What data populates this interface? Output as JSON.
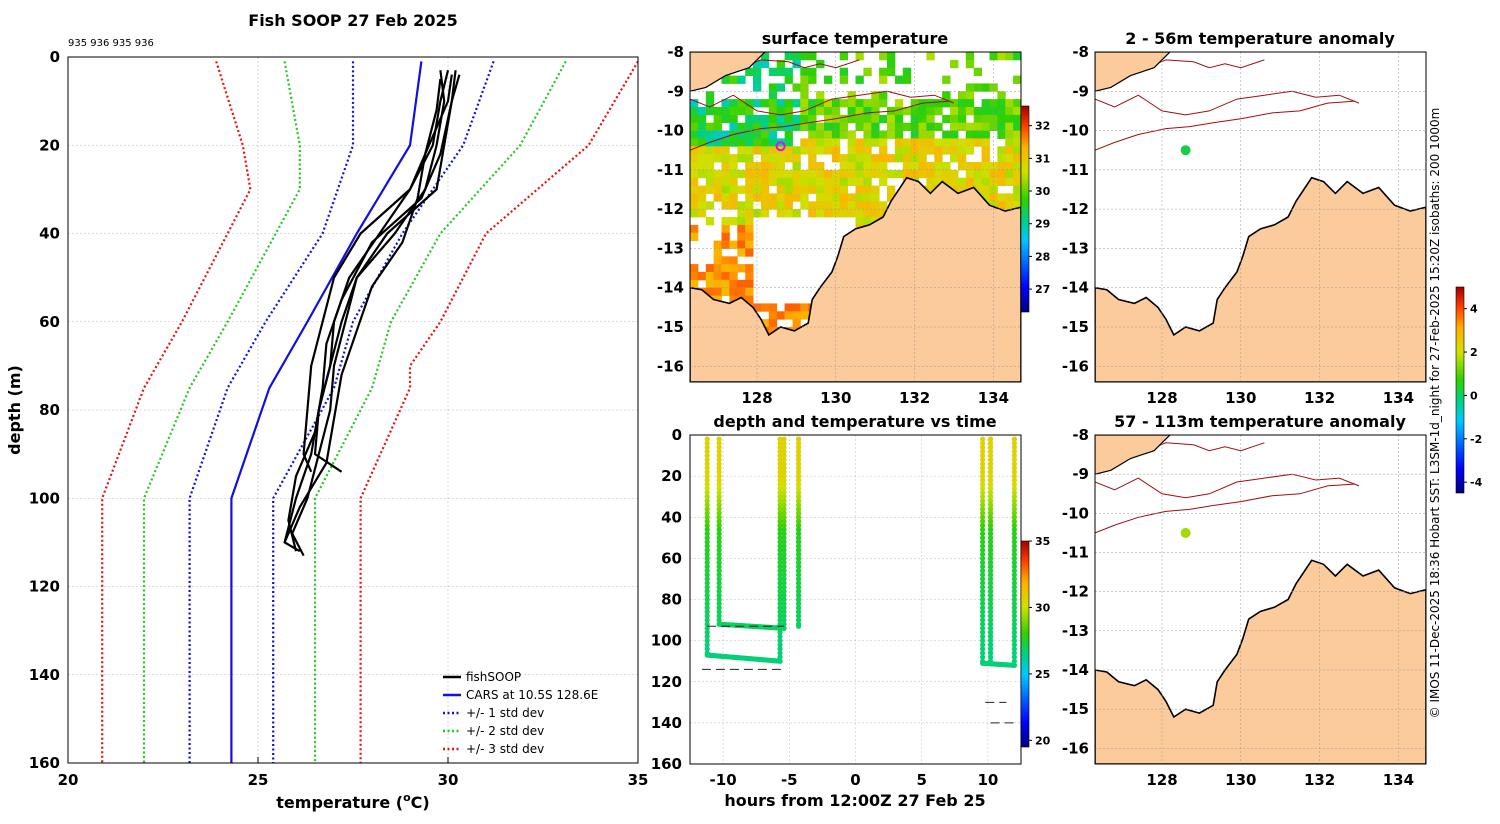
{
  "chart_data": [
    {
      "type": "line",
      "title": "Fish SOOP 27 Feb 2025",
      "subtitle": "935 936 935 936",
      "xlabel_prefix": "temperature (",
      "xlabel_unit": "o",
      "xlabel_suffix": "C)",
      "ylabel": "depth (m)",
      "xlim": [
        20,
        35
      ],
      "ylim": [
        0,
        160
      ],
      "xticks": [
        20,
        25,
        30,
        35
      ],
      "yticks": [
        0,
        20,
        40,
        60,
        80,
        100,
        120,
        140,
        160
      ],
      "legend": [
        "fishSOOP",
        "CARS at 10.5S 128.6E",
        "+/- 1 std dev",
        "+/- 2 std dev",
        "+/- 3 std dev"
      ],
      "cars": {
        "depth": [
          1,
          20,
          40,
          60,
          75,
          100,
          160
        ],
        "temp": [
          29.3,
          29.0,
          27.6,
          26.3,
          25.3,
          24.3,
          24.3
        ]
      },
      "std1": {
        "minus": {
          "depth": [
            1,
            20,
            40,
            60,
            75,
            100,
            160
          ],
          "temp": [
            27.5,
            27.5,
            26.7,
            25.2,
            24.2,
            23.2,
            23.2
          ]
        },
        "plus": {
          "depth": [
            1,
            20,
            40,
            60,
            75,
            100,
            160
          ],
          "temp": [
            31.2,
            30.4,
            28.8,
            27.5,
            27.0,
            25.4,
            25.4
          ]
        }
      },
      "std2": {
        "minus": {
          "depth": [
            1,
            20,
            30,
            60,
            75,
            100,
            160
          ],
          "temp": [
            25.7,
            26.1,
            26.1,
            24.2,
            23.2,
            22.0,
            22.0
          ]
        },
        "plus": {
          "depth": [
            1,
            20,
            40,
            60,
            75,
            100,
            160
          ],
          "temp": [
            33.1,
            31.9,
            29.8,
            28.5,
            28.0,
            26.5,
            26.5
          ]
        }
      },
      "std3": {
        "minus": {
          "depth": [
            1,
            20,
            30,
            60,
            75,
            100,
            160
          ],
          "temp": [
            23.9,
            24.6,
            24.8,
            23.0,
            22.0,
            20.9,
            20.9
          ]
        },
        "plus": {
          "depth": [
            1,
            20,
            40,
            60,
            70,
            75,
            100,
            160
          ],
          "temp": [
            35.0,
            33.7,
            31.0,
            29.8,
            29.0,
            29.0,
            27.7,
            27.7
          ]
        }
      },
      "fish_profiles": [
        {
          "depth": [
            3,
            10,
            20,
            30,
            40,
            50,
            60,
            70,
            80,
            90,
            100,
            108,
            113
          ],
          "temp": [
            29.8,
            29.9,
            29.7,
            29.4,
            28.6,
            27.6,
            27.3,
            27.0,
            26.9,
            26.6,
            26.3,
            25.9,
            26.2
          ]
        },
        {
          "depth": [
            3,
            10,
            20,
            30,
            40,
            50,
            60,
            70,
            80,
            90,
            100,
            110,
            112
          ],
          "temp": [
            30.0,
            29.8,
            29.6,
            29.0,
            28.2,
            27.4,
            27.0,
            26.9,
            26.6,
            26.4,
            26.0,
            25.7,
            26.1
          ]
        },
        {
          "depth": [
            4,
            10,
            20,
            30,
            40,
            50,
            60,
            70,
            80,
            90,
            94
          ],
          "temp": [
            30.1,
            30.0,
            29.5,
            29.0,
            27.7,
            27.0,
            26.7,
            26.4,
            26.3,
            26.2,
            26.4
          ]
        },
        {
          "depth": [
            4,
            10,
            20,
            30,
            40,
            50,
            60,
            70,
            80,
            90,
            94
          ],
          "temp": [
            30.3,
            30.1,
            29.9,
            29.7,
            28.4,
            27.6,
            27.2,
            26.9,
            26.6,
            26.5,
            27.2
          ]
        },
        {
          "depth": [
            5,
            12,
            22,
            32,
            42,
            52,
            62,
            72,
            82,
            92,
            102,
            110
          ],
          "temp": [
            29.8,
            29.7,
            29.4,
            29.2,
            28.8,
            28.0,
            27.6,
            27.2,
            27.0,
            26.8,
            26.1,
            25.7
          ]
        },
        {
          "depth": [
            3,
            10,
            22,
            32,
            42,
            55,
            65,
            75,
            85,
            95,
            105,
            112
          ],
          "temp": [
            30.2,
            30.1,
            29.8,
            29.3,
            28.0,
            27.2,
            26.8,
            26.7,
            26.5,
            26.0,
            25.8,
            26.0
          ]
        }
      ]
    },
    {
      "type": "heatmap",
      "title": "surface temperature",
      "xticks": [
        128,
        130,
        132,
        134
      ],
      "yticks": [
        -8,
        -9,
        -10,
        -11,
        -12,
        -13,
        -14,
        -15,
        -16
      ],
      "xlim": [
        126.3,
        134.7
      ],
      "ylim": [
        -16.4,
        -8
      ],
      "colorbar": {
        "ticks": [
          27,
          28,
          29,
          30,
          31,
          32
        ],
        "range": [
          26.3,
          32.6
        ]
      },
      "marker": {
        "lon": 128.6,
        "lat": -10.4
      }
    },
    {
      "type": "scatter",
      "title": "depth and temperature vs time",
      "xlabel": "hours from 12:00Z 27 Feb 25",
      "xticks": [
        -10,
        -5,
        0,
        5,
        10
      ],
      "yticks": [
        0,
        20,
        40,
        60,
        80,
        100,
        120,
        140,
        160
      ],
      "xlim": [
        -12.5,
        12.5
      ],
      "ylim": [
        0,
        160
      ],
      "colorbar": {
        "ticks": [
          20,
          25,
          30,
          35
        ],
        "range": [
          19.5,
          35
        ]
      },
      "casts": [
        {
          "t": -11.2,
          "bottom": 107,
          "t_end": -5.7,
          "bottom_end": 110
        },
        {
          "t": -10.3,
          "bottom": 92,
          "t_end": -5.4,
          "bottom_end": 94
        },
        {
          "t": -4.3,
          "bottom": 93,
          "t_end": -4.3,
          "bottom_end": 93
        },
        {
          "t": 9.6,
          "bottom": 111,
          "t_end": 12.0,
          "bottom_end": 112
        },
        {
          "t": 10.2,
          "bottom": 111,
          "t_end": 10.2,
          "bottom_end": 111
        }
      ],
      "bottom_depth_dashes": [
        {
          "t0": -11.2,
          "t1": -5.4,
          "depth": 93
        },
        {
          "t0": -11.6,
          "t1": -5.6,
          "depth": 114
        },
        {
          "t0": 9.8,
          "t1": 11.4,
          "depth": 130
        },
        {
          "t0": 10.2,
          "t1": 12.3,
          "depth": 140
        }
      ]
    },
    {
      "type": "heatmap",
      "title": "2 - 56m temperature anomaly",
      "xticks": [
        128,
        130,
        132,
        134
      ],
      "yticks": [
        -8,
        -9,
        -10,
        -11,
        -12,
        -13,
        -14,
        -15,
        -16
      ],
      "xlim": [
        126.3,
        134.7
      ],
      "ylim": [
        -16.4,
        -8
      ],
      "anomaly_point": {
        "lon": 128.6,
        "lat": -10.5,
        "value": 0.2
      }
    },
    {
      "type": "heatmap",
      "title": "57 - 113m temperature anomaly",
      "xticks": [
        128,
        130,
        132,
        134
      ],
      "yticks": [
        -8,
        -9,
        -10,
        -11,
        -12,
        -13,
        -14,
        -15,
        -16
      ],
      "xlim": [
        126.3,
        134.7
      ],
      "ylim": [
        -16.4,
        -8
      ],
      "anomaly_point": {
        "lon": 128.6,
        "lat": -10.5,
        "value": 1.6
      },
      "colorbar": {
        "ticks": [
          -4,
          -2,
          0,
          2,
          4
        ],
        "range": [
          -4.5,
          5
        ]
      }
    }
  ],
  "credit": "© IMOS 11-Dec-2025 18:36 Hobart SST: L3SM-1d_night for 27-Feb-2025 15:20Z isobaths: 200  1000m",
  "colors": {
    "land": "#FCCB9C",
    "coast": "#000000",
    "isobath": "#A01010",
    "fish": "#000000",
    "cars": "#1010E0",
    "std1": "#1010E0",
    "std2": "#22C922",
    "std3": "#E81010",
    "marker": "#E010E0"
  }
}
